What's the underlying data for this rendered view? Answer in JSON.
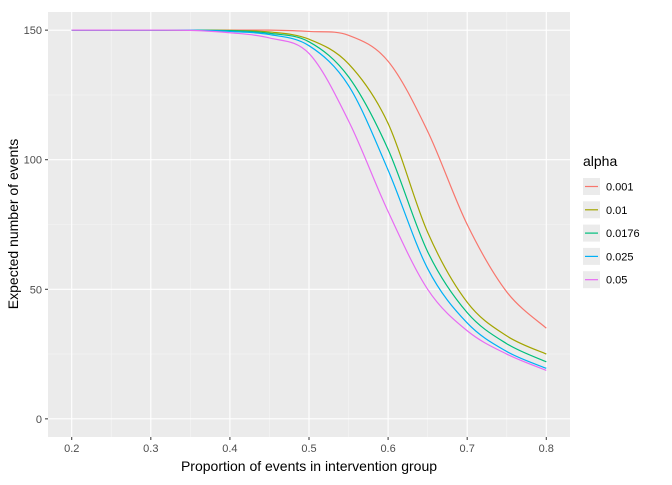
{
  "chart_data": {
    "type": "line",
    "title": "",
    "xlabel": "Proportion of events in intervention group",
    "ylabel": "Expected number of events",
    "xlim": [
      0.17,
      0.83
    ],
    "ylim": [
      -7,
      157
    ],
    "xticks": [
      0.2,
      0.3,
      0.4,
      0.5,
      0.6,
      0.7,
      0.8
    ],
    "xtick_labels": [
      "0.2",
      "0.3",
      "0.4",
      "0.5",
      "0.6",
      "0.7",
      "0.8"
    ],
    "yticks": [
      0,
      50,
      100,
      150
    ],
    "ytick_labels": [
      "0",
      "50",
      "100",
      "150"
    ],
    "grid": true,
    "legend": {
      "title": "alpha",
      "placement": "right"
    },
    "x": [
      0.2,
      0.25,
      0.3,
      0.35,
      0.4,
      0.45,
      0.5,
      0.55,
      0.6,
      0.65,
      0.7,
      0.75,
      0.8
    ],
    "series": [
      {
        "name": "0.001",
        "color": "#F8766D",
        "values": [
          150,
          150,
          150,
          150,
          150,
          150,
          149.5,
          148,
          138,
          111,
          75,
          49,
          35
        ]
      },
      {
        "name": "0.01",
        "color": "#A3A500",
        "values": [
          150,
          150,
          150,
          150,
          149.9,
          149.3,
          146.5,
          137,
          114,
          72,
          45,
          32,
          25
        ]
      },
      {
        "name": "0.0176",
        "color": "#00BF7D",
        "values": [
          150,
          150,
          150,
          150,
          149.8,
          148.8,
          145.5,
          132,
          104,
          64.5,
          41,
          29,
          22
        ]
      },
      {
        "name": "0.025",
        "color": "#00B0F6",
        "values": [
          150,
          150,
          150,
          150,
          149.5,
          148.3,
          144,
          128.6,
          96,
          58,
          37,
          26,
          19.5
        ]
      },
      {
        "name": "0.05",
        "color": "#E76BF3",
        "values": [
          150,
          150,
          150,
          149.9,
          149,
          147,
          141,
          115,
          80,
          50,
          34,
          25,
          18.7
        ]
      }
    ]
  }
}
